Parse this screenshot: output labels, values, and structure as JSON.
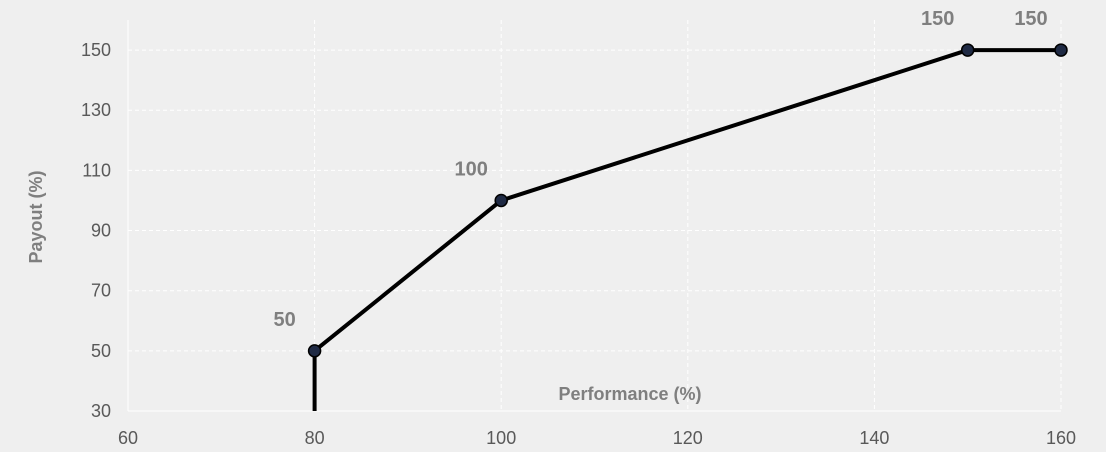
{
  "chart_data": {
    "type": "line",
    "title": "",
    "xlabel": "Performance  (%)",
    "ylabel": "Payout (%)",
    "xlim": [
      60,
      160
    ],
    "ylim": [
      30,
      160
    ],
    "x_ticks": [
      60,
      80,
      100,
      120,
      140,
      160
    ],
    "y_ticks": [
      30,
      50,
      70,
      90,
      110,
      130,
      150
    ],
    "grid": true,
    "legend": "none",
    "series": [
      {
        "x": [
          80,
          80,
          100,
          150,
          160
        ],
        "y": [
          30,
          50,
          100,
          150,
          150
        ],
        "markers": [
          false,
          true,
          true,
          true,
          true
        ],
        "data_labels": [
          "",
          "50",
          "100",
          "150",
          "150"
        ]
      }
    ],
    "colors": {
      "background": "#efefef",
      "line": "#000000",
      "marker": "#1f2a44",
      "grid": "#ffffff",
      "tick_text": "#595959",
      "label_text": "#7f7f7f"
    }
  }
}
